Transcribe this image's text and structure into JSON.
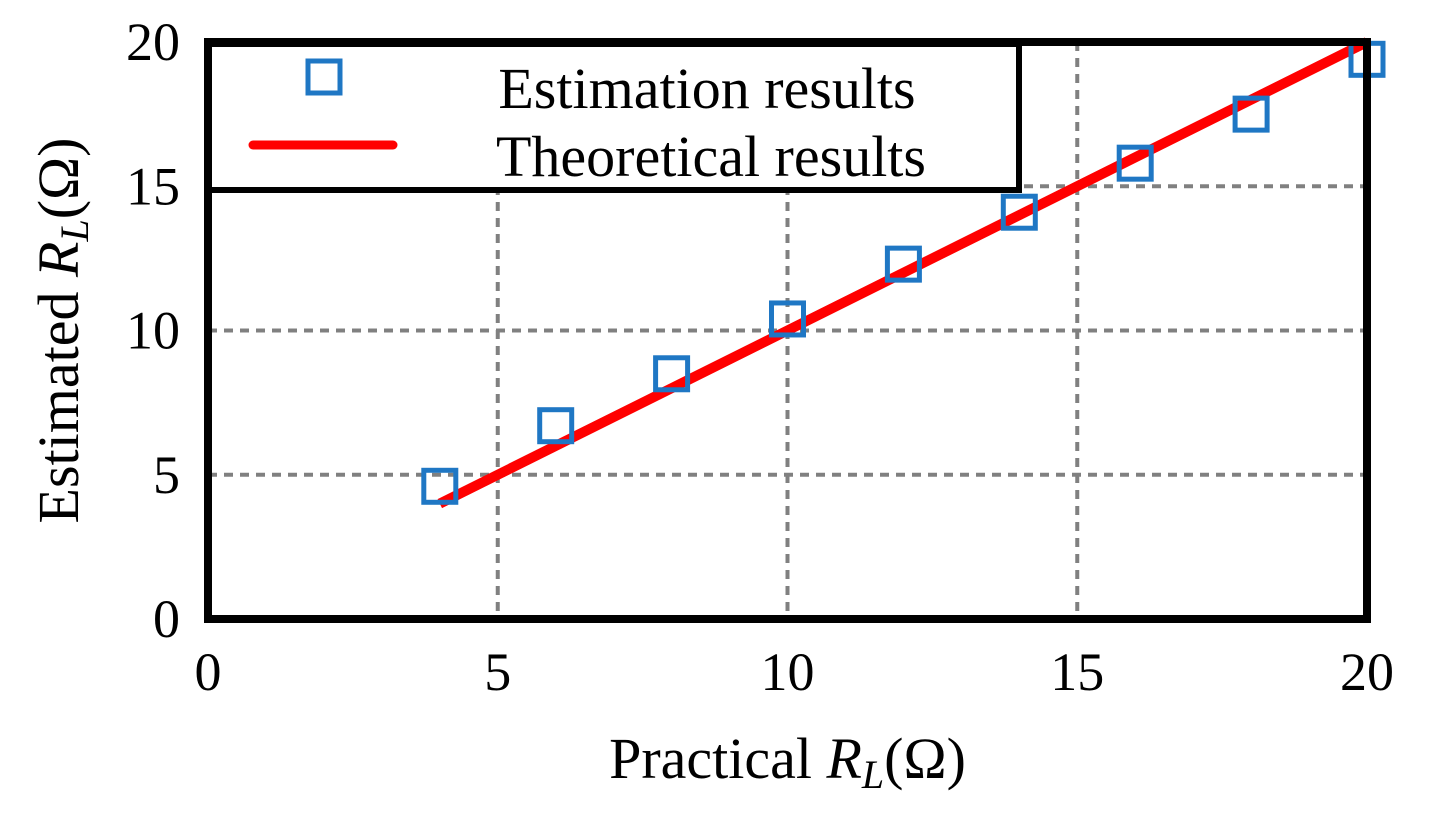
{
  "chart_data": {
    "type": "scatter",
    "title": "",
    "xlabel": "Practical R_L(Ω)",
    "ylabel": "Estimated R_L(Ω)",
    "xlabel_parts": {
      "prefix": "Practical ",
      "symbol": "R",
      "subscript": "L",
      "unit": "(Ω)"
    },
    "ylabel_parts": {
      "prefix": "Estimated ",
      "symbol": "R",
      "subscript": "L",
      "unit": "(Ω)"
    },
    "xlim": [
      0,
      20
    ],
    "ylim": [
      0,
      20
    ],
    "xticks": [
      0,
      5,
      10,
      15,
      20
    ],
    "yticks": [
      0,
      5,
      10,
      15,
      20
    ],
    "xtick_labels": [
      "0",
      "5",
      "10",
      "15",
      "20"
    ],
    "ytick_labels": [
      "0",
      "5",
      "10",
      "15",
      "20"
    ],
    "grid": true,
    "legend_position": "top-left",
    "series": [
      {
        "name": "Estimation results",
        "kind": "marker",
        "marker": "square-open",
        "color": "#1f77c4",
        "x": [
          4,
          6,
          8,
          10,
          12,
          14,
          16,
          18,
          20
        ],
        "y": [
          4.6,
          6.7,
          8.5,
          10.4,
          12.3,
          14.1,
          15.8,
          17.5,
          19.4
        ]
      },
      {
        "name": "Theoretical results",
        "kind": "line",
        "color": "#ff0000",
        "x": [
          4,
          20
        ],
        "y": [
          4,
          20
        ]
      }
    ]
  }
}
